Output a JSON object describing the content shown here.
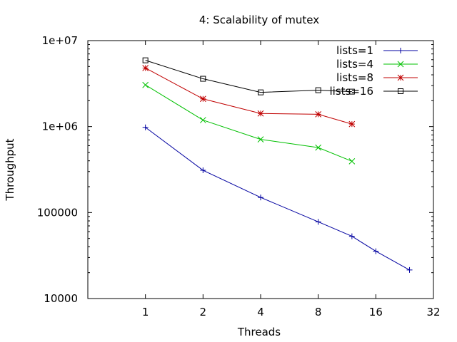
{
  "chart_data": {
    "type": "line",
    "title": "4: Scalability of mutex",
    "xlabel": "Threads",
    "ylabel": "Throughput",
    "x_scale": "log2",
    "y_scale": "log10",
    "xlim": [
      0.5,
      32
    ],
    "ylim": [
      10000,
      10000000
    ],
    "x_ticks": [
      1,
      2,
      4,
      8,
      16,
      32
    ],
    "x_tick_labels": [
      "1",
      "2",
      "4",
      "8",
      "16",
      "32"
    ],
    "y_ticks": [
      10000,
      100000,
      1000000,
      10000000
    ],
    "y_tick_labels": [
      "10000",
      "100000",
      "1e+06",
      "1e+07"
    ],
    "legend_position": "top-right",
    "grid": false,
    "series": [
      {
        "name": "lists=1",
        "color": "#0000a0",
        "marker": "plus",
        "points": [
          [
            1,
            980000
          ],
          [
            2,
            310000
          ],
          [
            4,
            150000
          ],
          [
            8,
            78000
          ],
          [
            12,
            53000
          ],
          [
            16,
            35500
          ],
          [
            24,
            21500
          ]
        ]
      },
      {
        "name": "lists=4",
        "color": "#00c000",
        "marker": "cross",
        "points": [
          [
            1,
            3050000
          ],
          [
            2,
            1190000
          ],
          [
            4,
            710000
          ],
          [
            8,
            570000
          ],
          [
            12,
            395000
          ]
        ]
      },
      {
        "name": "lists=8",
        "color": "#c00000",
        "marker": "star",
        "points": [
          [
            1,
            4800000
          ],
          [
            2,
            2100000
          ],
          [
            4,
            1420000
          ],
          [
            8,
            1390000
          ],
          [
            12,
            1070000
          ]
        ]
      },
      {
        "name": "lists=16",
        "color": "#000000",
        "marker": "square",
        "points": [
          [
            1,
            5900000
          ],
          [
            2,
            3600000
          ],
          [
            4,
            2500000
          ],
          [
            8,
            2650000
          ],
          [
            12,
            2550000
          ]
        ]
      }
    ]
  }
}
